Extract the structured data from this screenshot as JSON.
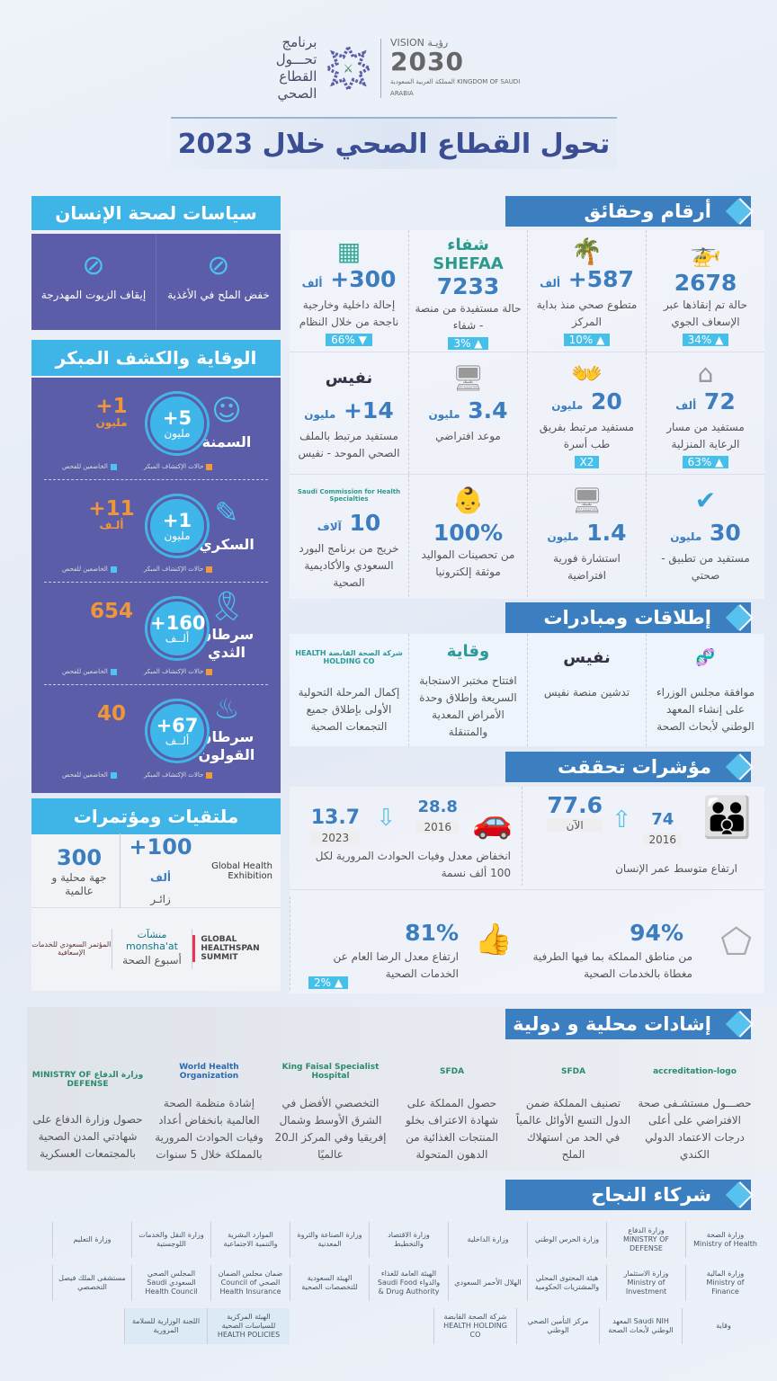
{
  "header": {
    "program_logo_text": "برنامج تحـــول القطاع الصحي",
    "vision_logo": {
      "line1": "VISION رؤيـة",
      "line2": "2030",
      "line3": "المملكة العربية السعودية KINGDOM OF SAUDI ARABIA"
    },
    "title": "تحول القطاع الصحي خلال 2023"
  },
  "policies": {
    "title": "سياسات لصحة الإنسان",
    "items": [
      {
        "label": "خفض الملح في الأغذية",
        "icon": "salt-na-icon"
      },
      {
        "label": "إيقاف الزيوت المهدرجة",
        "icon": "no-oil-drop-icon"
      }
    ]
  },
  "prevention": {
    "title": "الوقاية والكشف المبكر",
    "legend": {
      "screened": "الخاضعين للفحص",
      "early": "حالات الإكتشاف المبكر"
    },
    "colors": {
      "screened": "#3fb6ea",
      "early": "#f29a36"
    },
    "rows": [
      {
        "label": "السمنة",
        "screened": "+5",
        "screened_unit": "مليون",
        "early": "+1",
        "early_unit": "مليون",
        "icon": "obesity-icon"
      },
      {
        "label": "السكري",
        "screened": "+1",
        "screened_unit": "مليون",
        "early": "+11",
        "early_unit": "ألـف",
        "icon": "glucose-meter-icon"
      },
      {
        "label": "سرطان الثدي",
        "screened": "+160",
        "screened_unit": "ألــف",
        "early": "654",
        "early_unit": "",
        "icon": "ribbon-icon"
      },
      {
        "label": "سرطان القولون",
        "screened": "+67",
        "screened_unit": "ألــف",
        "early": "40",
        "early_unit": "",
        "icon": "colon-icon"
      }
    ]
  },
  "conferences": {
    "title": "ملتقيات ومؤتمرات",
    "ghe": {
      "logo": "Global Health Exhibition",
      "value": "+100",
      "unit": "ألف",
      "desc": "زائـر"
    },
    "entities": {
      "value": "300",
      "desc": "جهة محلية و عالمية"
    },
    "logos": [
      "GLOBAL HEALTHSPAN SUMMIT",
      "منشآت monsha'at",
      "المؤتمر السعودي للخدمات الإسعافية"
    ],
    "health_week": "أسبوع الصحة"
  },
  "facts": {
    "title": "أرقام وحقائق",
    "rows": [
      [
        {
          "value": "2678",
          "unit": "",
          "desc": "حالة تم إنقاذها عبر الإسعاف الجوي",
          "badge": "34% ▲",
          "icon": "helicopter-icon"
        },
        {
          "value": "+587",
          "unit": "ألف",
          "desc": "متطوع صحي منذ بداية المركز",
          "badge": "10% ▲",
          "icon": "palm-logo-icon"
        },
        {
          "value": "7233",
          "unit": "",
          "desc": "حالة مستفيدة من منصة - شفاء",
          "badge": "3% ▲",
          "icon": "shefaa-logo",
          "logo": "شفاء SHEFAA"
        },
        {
          "value": "+300",
          "unit": "ألف",
          "desc": "إحالة داخلية وخارجية ناجحة من خلال النظام",
          "badge": "66% ▼",
          "icon": "referral-center-logo"
        }
      ],
      [
        {
          "value": "72",
          "unit": "ألف",
          "desc": "مستفيد من مسار الرعاية المنزلية",
          "badge": "63% ▲",
          "icon": "home-care-icon"
        },
        {
          "value": "20",
          "unit": "مليون",
          "desc": "مستفيد مرتبط بفريق طب أسرة",
          "badge": "X2",
          "icon": "family-hands-icon"
        },
        {
          "value": "3.4",
          "unit": "مليون",
          "desc": "موعد افتراضي",
          "badge": "",
          "icon": "virtual-doctor-icon"
        },
        {
          "value": "+14",
          "unit": "مليون",
          "desc": "مستفيد مرتبط بالملف الصحي الموحد - نفيس",
          "badge": "",
          "icon": "nafis-logo",
          "logo": "نفيس"
        }
      ],
      [
        {
          "value": "30",
          "unit": "مليون",
          "desc": "مستفيد من تطبيق - صحتي",
          "badge": "",
          "icon": "sehhaty-check-icon"
        },
        {
          "value": "1.4",
          "unit": "مليون",
          "desc": "استشارة فورية افتراضية",
          "badge": "",
          "icon": "virtual-doctor-icon"
        },
        {
          "value": "100%",
          "unit": "",
          "desc": "من تحصينات المواليد موثقة إلكترونيا",
          "badge": "",
          "icon": "baby-vaccine-icon"
        },
        {
          "value": "10",
          "unit": "آلاف",
          "desc": "خريج من برنامج البورد السعودي والأكاديمية الصحية",
          "badge": "",
          "icon": "scfhs-logo",
          "logo": "Saudi Commission for Health Specialties"
        }
      ]
    ]
  },
  "launches": {
    "title": "إطلاقات ومبادرات",
    "items": [
      {
        "desc": "موافقة مجلس الوزراء على إنشاء المعهد الوطني لأبحاث الصحة",
        "logo": "dna-logo"
      },
      {
        "desc": "تدشين منصة نفيس",
        "logo": "نفيس"
      },
      {
        "desc": "افتتاح مختبر الاستجابة السريعة وإطلاق وحدة الأمراض المعدية والمتنقلة",
        "logo": "وقاية"
      },
      {
        "desc": "إكمال المرحلة التحولية الأولى بإطلاق جميع التجمعات الصحية",
        "logo": "شركة الصحة القابضة HEALTH HOLDING CO"
      }
    ]
  },
  "indicators": {
    "title": "مؤشرات تحققت",
    "life": {
      "old_value": "74",
      "old_label": "2016",
      "new_value": "77.6",
      "new_label": "الآن",
      "desc": "ارتفاع متوسط عمر الإنسان"
    },
    "traffic": {
      "old_value": "28.8",
      "old_label": "2016",
      "new_value": "13.7",
      "new_label": "2023",
      "desc": "انخفاض معدل وفيات الحوادث المرورية لكل 100 ألف نسمة"
    },
    "coverage": {
      "value": "94%",
      "desc": "من مناطق المملكة بما فيها الطرفية مغطاة بالخدمات الصحية"
    },
    "satisfaction": {
      "value": "81%",
      "desc": "ارتفاع معدل الرضا العام عن الخدمات الصحية",
      "badge": "2% ▲"
    }
  },
  "recognition": {
    "title": "إشادات محلية و دولية",
    "items": [
      {
        "desc": "حصـــول مستشـفى صحة الافتراضي على أعلى درجات الاعتماد الدولي الكندي",
        "logo": "accreditation-logo"
      },
      {
        "desc": "تصنيف المملكة ضمن الدول التسع الأوائل عالمياً في الحد من استهلاك الملح",
        "logo": "SFDA"
      },
      {
        "desc": "حصول المملكة على شهادة الاعتراف بخلو المنتجات الغذائية من الدهون المتحولة",
        "logo": "SFDA"
      },
      {
        "desc": "التخصصي الأفضل في الشرق الأوسط وشمال إفريقيا وفي المركز الـ20 عالميًا",
        "logo": "King Faisal Specialist Hospital"
      },
      {
        "desc": "إشادة منظمة الصحة العالمية بانخفاض أعداد وفيات الحوادث المرورية بالمملكة خلال 5 سنوات",
        "logo": "World Health Organization"
      },
      {
        "desc": "حصول وزارة الدفاع على شهادتي المدن الصحية بالمجتمعات العسكرية",
        "logo": "وزارة الدفاع MINISTRY OF DEFENSE"
      }
    ]
  },
  "partners": {
    "title": "شركاء النجاح",
    "rows": [
      [
        "وزارة الصحة Ministry of Health",
        "وزارة الدفاع MINISTRY OF DEFENSE",
        "وزارة الحرس الوطني",
        "وزارة الداخلية",
        "وزارة الاقتصاد والتخطيط",
        "وزارة الصناعة والثروة المعدنية",
        "الموارد البشرية والتنمية الاجتماعية",
        "وزارة النقل والخدمات اللوجستية",
        "وزارة التعليم"
      ],
      [
        "وزارة المالية Ministry of Finance",
        "وزارة الاستثمار Ministry of Investment",
        "هيئة المحتوى المحلي والمشتريات الحكومية",
        "الهلال الأحمر السعودي",
        "الهيئة العامة للغذاء والدواء Saudi Food & Drug Authority",
        "الهيئة السعودية للتخصصات الصحية",
        "ضمان مجلس الضمان الصحي Council of Health Insurance",
        "المجلس الصحي السعودي Saudi Health Council",
        "مستشفى الملك فيصل التخصصي"
      ],
      [
        "وقاية",
        "Saudi NIH المعهد الوطني لأبحاث الصحة",
        "مركز التأمين الصحي الوطني",
        "شركة الصحة القابضة HEALTH HOLDING CO",
        "الهيئة المركزية للسياسات الصحية HEALTH POLICIES",
        "اللجنة الوزارية للسلامة المرورية"
      ]
    ]
  }
}
